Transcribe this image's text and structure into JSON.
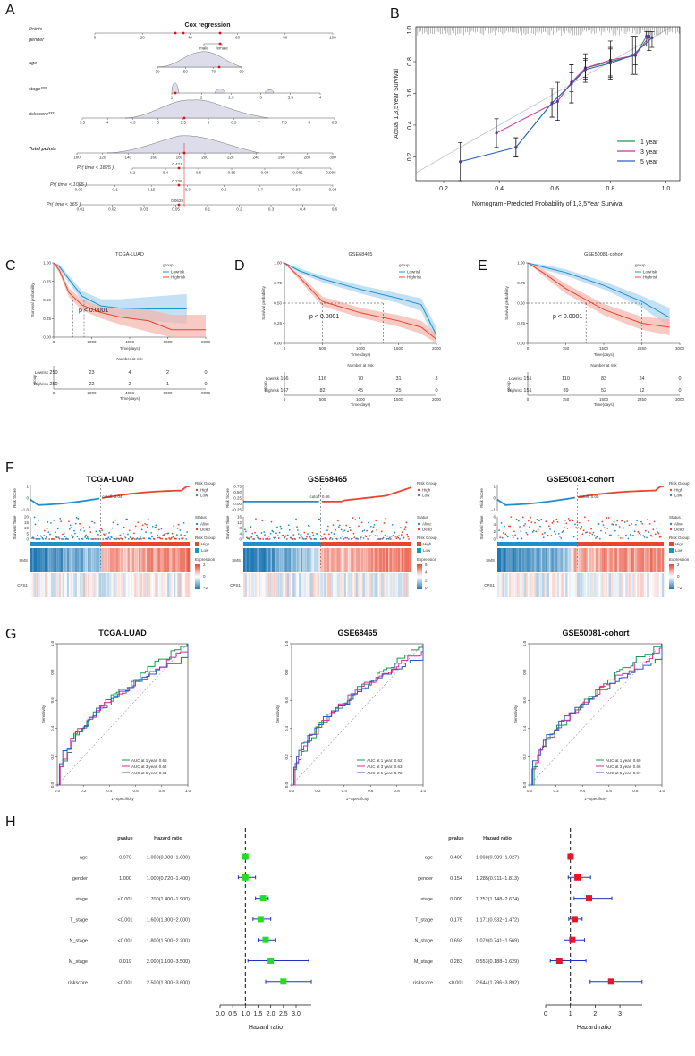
{
  "panels": {
    "A": "A",
    "B": "B",
    "C": "C",
    "D": "D",
    "E": "E",
    "F": "F",
    "G": "G",
    "H": "H"
  },
  "colors": {
    "low": "#1f8fcc",
    "high": "#e8452f",
    "lowFill": "#a9d3ef",
    "highFill": "#f4b3a9",
    "c1": "#1a9850",
    "c3": "#d12f9d",
    "c5": "#2b5cbf",
    "green": "#22dd22",
    "red": "#e3162b"
  },
  "nomogram": {
    "title": "Cox regression",
    "rows": [
      {
        "label": "Points",
        "ticks": [
          "0",
          "20",
          "40",
          "60",
          "80",
          "100"
        ]
      },
      {
        "label": "gender",
        "ticks": [
          "male",
          "female"
        ]
      },
      {
        "label": "age",
        "ticks": [
          "30",
          "50",
          "70",
          "90"
        ]
      },
      {
        "label": "stage***",
        "ticks": [
          "1",
          "2",
          "2.5",
          "3",
          "3.5",
          "4"
        ]
      },
      {
        "label": "riskscore***",
        "ticks": [
          "3.5",
          "4",
          "4.5",
          "5",
          "5.5",
          "6",
          "6.5",
          "7",
          "7.5",
          "8",
          "8.5"
        ]
      },
      {
        "label": "Total points",
        "ticks": [
          "100",
          "120",
          "140",
          "160",
          "180",
          "200",
          "220",
          "240",
          "260",
          "280",
          "300"
        ]
      },
      {
        "label": "Pr( time < 1825 )",
        "ticks": [
          "0.2",
          "0.4",
          "0.6",
          "0.85",
          "0.94",
          "0.985",
          "0.998"
        ],
        "value": "0.421"
      },
      {
        "label": "Pr( time < 1095 )",
        "ticks": [
          "0.05",
          "0.1",
          "0.15",
          "0.3",
          "0.5",
          "0.7",
          "0.93",
          "0.98"
        ],
        "value": "0.226"
      },
      {
        "label": "Pr( time < 365 )",
        "ticks": [
          "0.01",
          "0.02",
          "0.03",
          "0.05",
          "0.1",
          "0.2",
          "0.3",
          "0.4",
          "0.6"
        ],
        "value": "0.0629"
      }
    ]
  },
  "chart_data": [
    {
      "id": "B",
      "type": "line",
      "title": "",
      "xlabel": "Nomogram−Predicted Probability of 1,3,5Year Survival",
      "ylabel": "Actual 1,3,5Year Survival",
      "xlim": [
        0.1,
        1.05
      ],
      "ylim": [
        0.05,
        1.02
      ],
      "xticks": [
        "0.2",
        "0.4",
        "0.6",
        "0.8",
        "1.0"
      ],
      "yticks": [
        "0.2",
        "0.4",
        "0.6",
        "0.8",
        "1.0"
      ],
      "series": [
        {
          "name": "1 year",
          "x": [
            0.46,
            0.59,
            0.66,
            0.71,
            0.8,
            0.89,
            0.93
          ],
          "y": [
            0.26,
            0.54,
            0.66,
            0.76,
            0.8,
            0.84,
            0.96
          ]
        },
        {
          "name": "3 year",
          "x": [
            0.39,
            0.61,
            0.66,
            0.71,
            0.8,
            0.89,
            0.94
          ],
          "y": [
            0.35,
            0.55,
            0.67,
            0.76,
            0.81,
            0.84,
            0.96
          ]
        },
        {
          "name": "5 year",
          "x": [
            0.26,
            0.46,
            0.59,
            0.66,
            0.71,
            0.8,
            0.88,
            0.95
          ],
          "y": [
            0.17,
            0.26,
            0.54,
            0.66,
            0.75,
            0.79,
            0.84,
            0.95
          ]
        }
      ]
    },
    {
      "id": "C",
      "type": "line",
      "title": "TCGA-LUAD",
      "xlabel": "Time(days)",
      "ylabel": "Survival probability",
      "pvalue": "p < 0.0001",
      "legend": [
        "Lowrisk",
        "Highrisk"
      ],
      "legend_title": "group",
      "xmax": 8000,
      "xticks": [
        "0",
        "2000",
        "4000",
        "6000",
        "8000"
      ],
      "yticks": [
        "0.00",
        "0.25",
        "0.50",
        "0.75",
        "1.00"
      ],
      "medians": [
        1000,
        1600
      ],
      "risk_title": "Number at risk",
      "risk_low": [
        "250",
        "23",
        "4",
        "2",
        "0"
      ],
      "risk_high": [
        "250",
        "22",
        "2",
        "1",
        "0"
      ]
    },
    {
      "id": "D",
      "type": "line",
      "title": "GSE68465",
      "xlabel": "Time(days)",
      "ylabel": "Survival probability",
      "pvalue": "p < 0.0001",
      "legend": [
        "Lowrisk",
        "Highrisk"
      ],
      "legend_title": "group",
      "xmax": 2000,
      "xticks": [
        "0",
        "500",
        "1000",
        "1500",
        "2000"
      ],
      "yticks": [
        "0.00",
        "0.25",
        "0.50",
        "0.75",
        "1.00"
      ],
      "medians": [
        500,
        1300
      ],
      "risk_title": "Number at risk",
      "risk_low": [
        "166",
        "116",
        "70",
        "31",
        "3"
      ],
      "risk_high": [
        "167",
        "82",
        "45",
        "25",
        "0"
      ]
    },
    {
      "id": "E",
      "type": "line",
      "title": "GSE50081-cohort",
      "xlabel": "Time(days)",
      "ylabel": "Survival probability",
      "pvalue": "p < 0.0001",
      "legend": [
        "Lowrisk",
        "Highrisk"
      ],
      "legend_title": "group",
      "xmax": 3000,
      "xticks": [
        "0",
        "750",
        "1500",
        "2250",
        "3000"
      ],
      "yticks": [
        "0.00",
        "0.25",
        "0.50",
        "0.75",
        "1.00"
      ],
      "medians": [
        1150,
        2250
      ],
      "risk_title": "Number at risk",
      "risk_low": [
        "151",
        "110",
        "83",
        "24",
        "0"
      ],
      "risk_high": [
        "151",
        "89",
        "52",
        "12",
        "0"
      ]
    },
    {
      "id": "F",
      "type": "scatter",
      "titles": [
        "TCGA-LUAD",
        "GSE68465",
        "GSE50081-cohort"
      ],
      "cutoffs": [
        "cutoff: 0.04",
        "cutoff: 0.06",
        "cutoff: 0.05"
      ],
      "genes": [
        "SMS",
        "CPS1"
      ],
      "risk_legend_title": "Risk Group",
      "risk_legend": [
        "High",
        "Low"
      ],
      "status_legend_title": "Status",
      "status_legend": [
        "Alive",
        "Dead"
      ],
      "expr_title": "Expression",
      "expr_ticks": [
        [
          "2",
          "0",
          "−2"
        ],
        [
          "6",
          "4",
          "2",
          "0"
        ],
        [
          "2",
          "0",
          "−2"
        ]
      ],
      "ylabels": [
        "Risk Score",
        "Survival Time"
      ],
      "score_ticks": [
        [
          "1",
          "0",
          "−1.0"
        ],
        [
          "0.75",
          "0.50",
          "0.25",
          "0.00",
          "−0.25"
        ],
        [
          "1",
          "0",
          "−1"
        ]
      ],
      "time_ticks": [
        [
          "20",
          "15",
          "10",
          "5",
          "0"
        ],
        [
          "16",
          "12",
          "8",
          "4",
          "0"
        ],
        [
          "6",
          "4",
          "2",
          "0"
        ]
      ]
    },
    {
      "id": "G",
      "type": "line",
      "titles": [
        "TCGA-LUAD",
        "GSE68465",
        "GSE50081-cohort"
      ],
      "xlabel": "1−Specificity",
      "ylabel": "Sensitivity",
      "xticks": [
        "0.0",
        "0.2",
        "0.4",
        "0.6",
        "0.8",
        "1.0"
      ],
      "yticks": [
        "0.0",
        "0.2",
        "0.4",
        "0.6",
        "0.8",
        "1.0"
      ],
      "auc": [
        [
          "AUC at 1 year: 0.68",
          "AUC at 3 year: 0.64",
          "AUC at 5 year: 0.61"
        ],
        [
          "AUC at 1 year: 0.62",
          "AUC at 3 year: 0.63",
          "AUC at 5 year: 0.72"
        ],
        [
          "AUC at 1 year: 0.69",
          "AUC at 3 year: 0.66",
          "AUC at 5 year: 0.67"
        ]
      ]
    },
    {
      "id": "H",
      "type": "forest",
      "col_p": "pvalue",
      "col_hr": "Hazard ratio",
      "xlabel": "Hazard ratio",
      "left": {
        "xticks": [
          "0.0",
          "0.5",
          "1.0",
          "1.5",
          "2.0",
          "2.5",
          "3.0"
        ],
        "xlim": [
          0,
          3.6
        ],
        "rows": [
          {
            "name": "age",
            "p": "0.970",
            "hr": "1.000(0.980−1.000)",
            "est": 1.0,
            "lo": 0.98,
            "hi": 1.0
          },
          {
            "name": "gender",
            "p": "1.000",
            "hr": "1.000(0.720−1.400)",
            "est": 1.0,
            "lo": 0.72,
            "hi": 1.4
          },
          {
            "name": "stage",
            "p": "<0.001",
            "hr": "1.700(1.400−1.900)",
            "est": 1.7,
            "lo": 1.4,
            "hi": 1.9
          },
          {
            "name": "T_stage",
            "p": "<0.001",
            "hr": "1.600(1.300−2.000)",
            "est": 1.6,
            "lo": 1.3,
            "hi": 2.0
          },
          {
            "name": "N_stage",
            "p": "<0.001",
            "hr": "1.800(1.500−2.200)",
            "est": 1.8,
            "lo": 1.5,
            "hi": 2.2
          },
          {
            "name": "M_stage",
            "p": "0.019",
            "hr": "2.000(1.100−3.500)",
            "est": 2.0,
            "lo": 1.1,
            "hi": 3.5
          },
          {
            "name": "riskscore",
            "p": "<0.001",
            "hr": "2.500(1.800−3.600)",
            "est": 2.5,
            "lo": 1.8,
            "hi": 3.6
          }
        ]
      },
      "right": {
        "xticks": [
          "0",
          "1",
          "2",
          "3"
        ],
        "xlim": [
          0,
          3.9
        ],
        "rows": [
          {
            "name": "age",
            "p": "0.406",
            "hr": "1.008(0.989−1.027)",
            "est": 1.008,
            "lo": 0.989,
            "hi": 1.027
          },
          {
            "name": "gender",
            "p": "0.154",
            "hr": "1.285(0.911−1.813)",
            "est": 1.285,
            "lo": 0.911,
            "hi": 1.813
          },
          {
            "name": "stage",
            "p": "0.009",
            "hr": "1.752(1.148−2.674)",
            "est": 1.752,
            "lo": 1.148,
            "hi": 2.674
          },
          {
            "name": "T_stage",
            "p": "0.175",
            "hr": "1.171(0.932−1.472)",
            "est": 1.171,
            "lo": 0.932,
            "hi": 1.472
          },
          {
            "name": "N_stage",
            "p": "0.693",
            "hr": "1.079(0.741−1.569)",
            "est": 1.079,
            "lo": 0.741,
            "hi": 1.569
          },
          {
            "name": "M_stage",
            "p": "0.283",
            "hr": "0.553(0.188−1.629)",
            "est": 0.553,
            "lo": 0.188,
            "hi": 1.629
          },
          {
            "name": "riskscore",
            "p": "<0.001",
            "hr": "2.644(1.796−3.892)",
            "est": 2.644,
            "lo": 1.796,
            "hi": 3.892
          }
        ]
      }
    }
  ]
}
